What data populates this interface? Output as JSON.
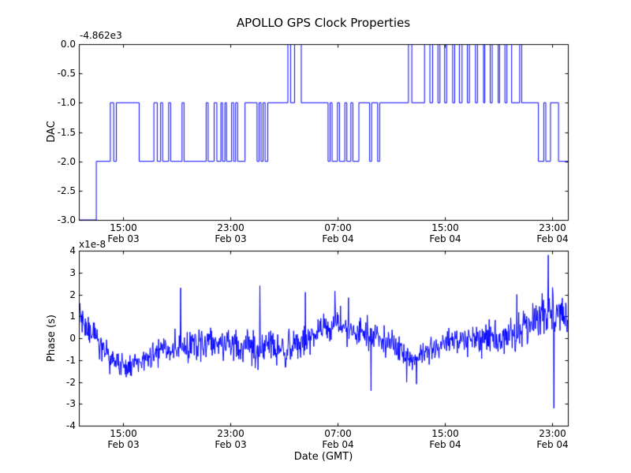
{
  "figure": {
    "title": "APOLLO GPS Clock Properties",
    "xlabel": "Date (GMT)",
    "background_color": "#ffffff",
    "axes_color": "#000000",
    "line_color": "#0000ff"
  },
  "chart_data": [
    {
      "type": "line",
      "subplot": "top",
      "style": "step",
      "ylabel": "DAC",
      "offset_label": "-4.862e3",
      "xlim": [
        11.7,
        48.2
      ],
      "ylim": [
        -3.0,
        0.0
      ],
      "yticks": [
        {
          "v": 0.0,
          "label": "0.0"
        },
        {
          "v": -0.5,
          "label": "-0.5"
        },
        {
          "v": -1.0,
          "label": "-1.0"
        },
        {
          "v": -1.5,
          "label": "-1.5"
        },
        {
          "v": -2.0,
          "label": "-2.0"
        },
        {
          "v": -2.5,
          "label": "-2.5"
        },
        {
          "v": -3.0,
          "label": "-3.0"
        }
      ],
      "xticks": [
        {
          "t": 15,
          "lines": [
            "15:00",
            "Feb 03"
          ]
        },
        {
          "t": 23,
          "lines": [
            "23:00",
            "Feb 03"
          ]
        },
        {
          "t": 31,
          "lines": [
            "07:00",
            "Feb 04"
          ]
        },
        {
          "t": 39,
          "lines": [
            "15:00",
            "Feb 04"
          ]
        },
        {
          "t": 47,
          "lines": [
            "23:00",
            "Feb 04"
          ]
        }
      ],
      "steps": [
        [
          11.7,
          -3
        ],
        [
          13.0,
          -2
        ],
        [
          14.05,
          -1
        ],
        [
          14.3,
          -2
        ],
        [
          14.5,
          -1
        ],
        [
          16.2,
          -2
        ],
        [
          17.3,
          -1
        ],
        [
          17.55,
          -2
        ],
        [
          17.8,
          -1
        ],
        [
          17.95,
          -2
        ],
        [
          18.4,
          -1
        ],
        [
          18.55,
          -2
        ],
        [
          19.4,
          -1
        ],
        [
          19.55,
          -2
        ],
        [
          21.2,
          -1
        ],
        [
          21.35,
          -2
        ],
        [
          21.8,
          -1
        ],
        [
          22.0,
          -2
        ],
        [
          22.3,
          -1
        ],
        [
          22.42,
          -2
        ],
        [
          22.6,
          -1
        ],
        [
          22.72,
          -2
        ],
        [
          23.1,
          -1
        ],
        [
          23.25,
          -2
        ],
        [
          23.4,
          -1
        ],
        [
          23.55,
          -2
        ],
        [
          24.1,
          -1
        ],
        [
          25.0,
          -2
        ],
        [
          25.15,
          -1
        ],
        [
          25.3,
          -2
        ],
        [
          25.45,
          -1
        ],
        [
          25.6,
          -2
        ],
        [
          25.8,
          -1
        ],
        [
          27.3,
          0
        ],
        [
          27.5,
          -1
        ],
        [
          27.8,
          0
        ],
        [
          28.3,
          -1
        ],
        [
          30.3,
          -2
        ],
        [
          30.45,
          -1
        ],
        [
          30.6,
          -2
        ],
        [
          31.0,
          -1
        ],
        [
          31.15,
          -2
        ],
        [
          31.55,
          -1
        ],
        [
          31.7,
          -2
        ],
        [
          32.0,
          -1
        ],
        [
          32.15,
          -2
        ],
        [
          32.6,
          -1
        ],
        [
          33.4,
          -2
        ],
        [
          33.55,
          -1
        ],
        [
          34.0,
          -2
        ],
        [
          34.15,
          -1
        ],
        [
          36.3,
          0
        ],
        [
          36.55,
          -1
        ],
        [
          37.5,
          0
        ],
        [
          37.9,
          -1
        ],
        [
          38.1,
          0
        ],
        [
          38.5,
          -1
        ],
        [
          38.65,
          0
        ],
        [
          39.0,
          -1
        ],
        [
          39.15,
          0
        ],
        [
          39.6,
          -1
        ],
        [
          39.75,
          0
        ],
        [
          40.1,
          -1
        ],
        [
          40.3,
          0
        ],
        [
          40.7,
          -1
        ],
        [
          40.85,
          0
        ],
        [
          41.3,
          -1
        ],
        [
          41.45,
          0
        ],
        [
          41.9,
          -1
        ],
        [
          42.0,
          0
        ],
        [
          42.4,
          -1
        ],
        [
          42.55,
          0
        ],
        [
          43.0,
          -1
        ],
        [
          43.1,
          0
        ],
        [
          43.5,
          -1
        ],
        [
          43.65,
          0
        ],
        [
          44.0,
          -1
        ],
        [
          44.6,
          0
        ],
        [
          44.75,
          -1
        ],
        [
          46.0,
          -2
        ],
        [
          46.4,
          -1
        ],
        [
          46.55,
          -2
        ],
        [
          46.9,
          -1
        ],
        [
          47.5,
          -2
        ]
      ]
    },
    {
      "type": "line",
      "subplot": "bottom",
      "style": "noisy",
      "ylabel": "Phase (s)",
      "offset_label": "x1e-8",
      "xlim": [
        11.7,
        48.2
      ],
      "ylim": [
        -4,
        4
      ],
      "yticks": [
        {
          "v": 4,
          "label": "4"
        },
        {
          "v": 3,
          "label": "3"
        },
        {
          "v": 2,
          "label": "2"
        },
        {
          "v": 1,
          "label": "1"
        },
        {
          "v": 0,
          "label": "0"
        },
        {
          "v": -1,
          "label": "-1"
        },
        {
          "v": -2,
          "label": "-2"
        },
        {
          "v": -3,
          "label": "-3"
        },
        {
          "v": -4,
          "label": "-4"
        }
      ],
      "xticks": [
        {
          "t": 15,
          "lines": [
            "15:00",
            "Feb 03"
          ]
        },
        {
          "t": 23,
          "lines": [
            "23:00",
            "Feb 03"
          ]
        },
        {
          "t": 31,
          "lines": [
            "07:00",
            "Feb 04"
          ]
        },
        {
          "t": 39,
          "lines": [
            "15:00",
            "Feb 04"
          ]
        },
        {
          "t": 47,
          "lines": [
            "23:00",
            "Feb 04"
          ]
        }
      ],
      "trend": [
        [
          11.7,
          1.0,
          0.35
        ],
        [
          12.3,
          0.5,
          0.4
        ],
        [
          13.0,
          0.0,
          0.4
        ],
        [
          14.0,
          -1.0,
          0.45
        ],
        [
          15.0,
          -1.3,
          0.45
        ],
        [
          16.5,
          -1.1,
          0.4
        ],
        [
          18.0,
          -0.5,
          0.4
        ],
        [
          19.5,
          -0.35,
          0.45
        ],
        [
          21.0,
          -0.3,
          0.5
        ],
        [
          23.0,
          -0.3,
          0.5
        ],
        [
          25.0,
          -0.45,
          0.55
        ],
        [
          27.0,
          -0.5,
          0.5
        ],
        [
          28.5,
          -0.2,
          0.45
        ],
        [
          30.0,
          0.5,
          0.4
        ],
        [
          31.0,
          0.6,
          0.4
        ],
        [
          32.5,
          0.2,
          0.45
        ],
        [
          34.0,
          0.1,
          0.5
        ],
        [
          35.5,
          -0.4,
          0.4
        ],
        [
          36.5,
          -1.0,
          0.35
        ],
        [
          37.5,
          -0.6,
          0.4
        ],
        [
          39.0,
          -0.2,
          0.4
        ],
        [
          41.0,
          -0.1,
          0.45
        ],
        [
          43.0,
          0.0,
          0.5
        ],
        [
          44.5,
          0.3,
          0.55
        ],
        [
          45.8,
          0.8,
          0.6
        ],
        [
          46.8,
          1.2,
          0.65
        ],
        [
          47.8,
          1.0,
          0.55
        ],
        [
          48.2,
          1.0,
          0.5
        ]
      ],
      "spikes": [
        [
          19.3,
          2.3
        ],
        [
          25.2,
          2.4
        ],
        [
          28.6,
          2.1
        ],
        [
          30.8,
          2.15
        ],
        [
          33.5,
          -2.4
        ],
        [
          36.9,
          -2.1
        ],
        [
          44.4,
          2.0
        ],
        [
          46.75,
          3.8
        ],
        [
          47.15,
          -3.2
        ]
      ],
      "noise_model": {
        "dt": 0.035,
        "sigma_scale": 1.5,
        "spike_prob": 0.02,
        "spike_scale": 3.5,
        "seed": 42
      }
    }
  ]
}
